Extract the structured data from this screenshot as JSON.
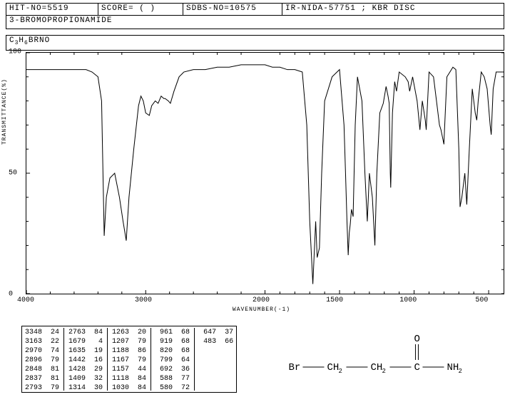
{
  "header": {
    "hit_no": "HIT-NO=5519",
    "score": "SCORE=  (  )",
    "sdbs_no": "SDBS-NO=10575",
    "method": "IR-NIDA-57751 ; KBR DISC"
  },
  "compound_name": "3-BROMOPROPIONAMIDE",
  "formula_html": "C<sub>3</sub>H<sub>6</sub>BRNO",
  "chart": {
    "type": "line",
    "y_label": "TRANSMITTANCE(%)",
    "x_label": "WAVENUMBER(-1)",
    "ylim": [
      0,
      100
    ],
    "xlim": [
      4000,
      400
    ],
    "y_ticks": [
      0,
      50,
      100
    ],
    "x_ticks": [
      4000,
      3000,
      2000,
      1500,
      1000,
      500
    ],
    "line_color": "#000000",
    "background_color": "#ffffff",
    "spectrum": [
      [
        4000,
        93
      ],
      [
        3900,
        93
      ],
      [
        3800,
        93
      ],
      [
        3700,
        93
      ],
      [
        3600,
        93
      ],
      [
        3500,
        93
      ],
      [
        3450,
        92
      ],
      [
        3400,
        90
      ],
      [
        3370,
        80
      ],
      [
        3348,
        24
      ],
      [
        3330,
        40
      ],
      [
        3300,
        48
      ],
      [
        3260,
        50
      ],
      [
        3220,
        40
      ],
      [
        3190,
        30
      ],
      [
        3163,
        22
      ],
      [
        3140,
        40
      ],
      [
        3100,
        60
      ],
      [
        3060,
        78
      ],
      [
        3040,
        82
      ],
      [
        3020,
        80
      ],
      [
        3000,
        75
      ],
      [
        2970,
        74
      ],
      [
        2950,
        78
      ],
      [
        2920,
        80
      ],
      [
        2896,
        79
      ],
      [
        2870,
        82
      ],
      [
        2848,
        81
      ],
      [
        2837,
        81
      ],
      [
        2810,
        80
      ],
      [
        2793,
        79
      ],
      [
        2763,
        84
      ],
      [
        2720,
        90
      ],
      [
        2680,
        92
      ],
      [
        2600,
        93
      ],
      [
        2500,
        93
      ],
      [
        2400,
        94
      ],
      [
        2300,
        94
      ],
      [
        2200,
        95
      ],
      [
        2100,
        95
      ],
      [
        2000,
        95
      ],
      [
        1950,
        94
      ],
      [
        1900,
        94
      ],
      [
        1850,
        93
      ],
      [
        1800,
        93
      ],
      [
        1750,
        92
      ],
      [
        1720,
        70
      ],
      [
        1700,
        30
      ],
      [
        1679,
        4
      ],
      [
        1660,
        30
      ],
      [
        1650,
        15
      ],
      [
        1635,
        19
      ],
      [
        1620,
        50
      ],
      [
        1600,
        80
      ],
      [
        1550,
        90
      ],
      [
        1500,
        93
      ],
      [
        1470,
        70
      ],
      [
        1460,
        50
      ],
      [
        1450,
        30
      ],
      [
        1442,
        16
      ],
      [
        1435,
        25
      ],
      [
        1428,
        29
      ],
      [
        1420,
        35
      ],
      [
        1409,
        32
      ],
      [
        1395,
        70
      ],
      [
        1380,
        90
      ],
      [
        1350,
        80
      ],
      [
        1330,
        50
      ],
      [
        1314,
        30
      ],
      [
        1300,
        50
      ],
      [
        1280,
        40
      ],
      [
        1263,
        20
      ],
      [
        1250,
        50
      ],
      [
        1230,
        75
      ],
      [
        1207,
        79
      ],
      [
        1188,
        86
      ],
      [
        1175,
        82
      ],
      [
        1167,
        79
      ],
      [
        1160,
        50
      ],
      [
        1157,
        44
      ],
      [
        1145,
        75
      ],
      [
        1130,
        88
      ],
      [
        1118,
        84
      ],
      [
        1100,
        92
      ],
      [
        1060,
        90
      ],
      [
        1040,
        88
      ],
      [
        1030,
        84
      ],
      [
        1010,
        90
      ],
      [
        980,
        80
      ],
      [
        961,
        68
      ],
      [
        945,
        80
      ],
      [
        925,
        72
      ],
      [
        919,
        68
      ],
      [
        900,
        92
      ],
      [
        870,
        90
      ],
      [
        850,
        80
      ],
      [
        830,
        70
      ],
      [
        820,
        68
      ],
      [
        800,
        62
      ],
      [
        799,
        64
      ],
      [
        780,
        90
      ],
      [
        760,
        92
      ],
      [
        740,
        94
      ],
      [
        720,
        93
      ],
      [
        700,
        60
      ],
      [
        692,
        36
      ],
      [
        680,
        40
      ],
      [
        660,
        50
      ],
      [
        647,
        37
      ],
      [
        630,
        60
      ],
      [
        610,
        85
      ],
      [
        590,
        75
      ],
      [
        580,
        72
      ],
      [
        570,
        80
      ],
      [
        550,
        92
      ],
      [
        530,
        90
      ],
      [
        510,
        85
      ],
      [
        490,
        70
      ],
      [
        483,
        66
      ],
      [
        470,
        85
      ],
      [
        450,
        92
      ],
      [
        420,
        92
      ],
      [
        400,
        92
      ]
    ]
  },
  "peaks": [
    [
      [
        3348,
        24
      ],
      [
        3163,
        22
      ],
      [
        2970,
        74
      ],
      [
        2896,
        79
      ],
      [
        2848,
        81
      ],
      [
        2837,
        81
      ],
      [
        2793,
        79
      ]
    ],
    [
      [
        2763,
        84
      ],
      [
        1679,
        4
      ],
      [
        1635,
        19
      ],
      [
        1442,
        16
      ],
      [
        1428,
        29
      ],
      [
        1409,
        32
      ],
      [
        1314,
        30
      ]
    ],
    [
      [
        1263,
        20
      ],
      [
        1207,
        79
      ],
      [
        1188,
        86
      ],
      [
        1167,
        79
      ],
      [
        1157,
        44
      ],
      [
        1118,
        84
      ],
      [
        1030,
        84
      ]
    ],
    [
      [
        961,
        68
      ],
      [
        919,
        68
      ],
      [
        820,
        68
      ],
      [
        799,
        64
      ],
      [
        692,
        36
      ],
      [
        588,
        77
      ],
      [
        580,
        72
      ]
    ],
    [
      [
        647,
        37
      ],
      [
        483,
        66
      ]
    ]
  ],
  "structure": {
    "fragments": [
      "Br",
      "CH",
      "CH",
      "C",
      "NH"
    ],
    "sub": [
      "",
      "2",
      "2",
      "",
      "2"
    ],
    "bond": "—",
    "carbonyl_o": "O"
  }
}
